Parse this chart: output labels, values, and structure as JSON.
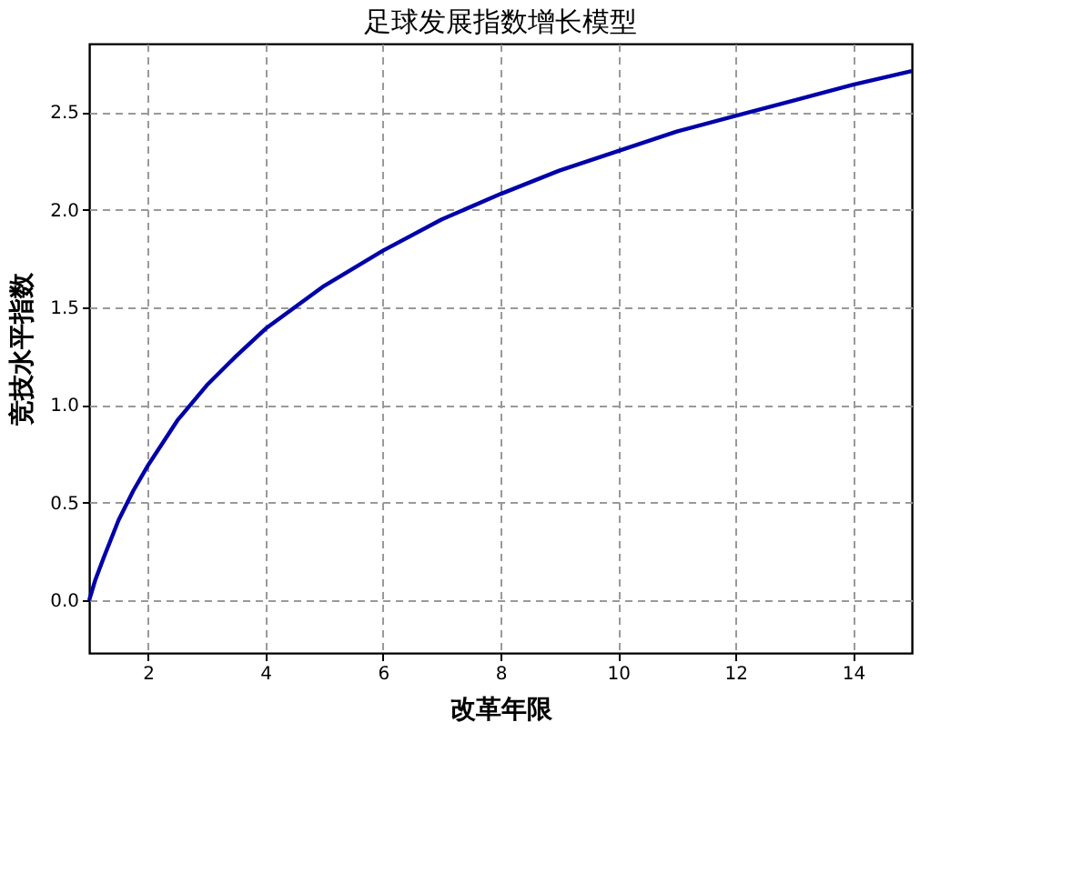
{
  "chart_data": {
    "type": "line",
    "title": "足球发展指数增长模型",
    "xlabel": "改革年限",
    "ylabel": "竞技水平指数",
    "series": [
      {
        "color": "#0000aa",
        "x": [
          1,
          1.1,
          1.25,
          1.5,
          1.75,
          2,
          2.5,
          3,
          3.5,
          4,
          5,
          6,
          7,
          8,
          9,
          10,
          11,
          12,
          13,
          14,
          15
        ],
        "values": [
          0,
          0.1,
          0.22,
          0.41,
          0.56,
          0.69,
          0.92,
          1.1,
          1.25,
          1.39,
          1.61,
          1.79,
          1.95,
          2.08,
          2.2,
          2.3,
          2.4,
          2.48,
          2.56,
          2.64,
          2.71
        ]
      }
    ],
    "xlim": [
      1,
      15
    ],
    "xticks": [
      2,
      4,
      6,
      8,
      10,
      12,
      14
    ],
    "ylim": [
      -0.27,
      2.85
    ],
    "yticks": [
      {
        "value": 0,
        "label": "0.0"
      },
      {
        "value": 0.5,
        "label": "0.5"
      },
      {
        "value": 1,
        "label": "1.0"
      },
      {
        "value": 1.5,
        "label": "1.5"
      },
      {
        "value": 2,
        "label": "2.0"
      },
      {
        "value": 2.5,
        "label": "2.5"
      }
    ],
    "grid": true,
    "line_style": "solid",
    "marker": "none",
    "legend": false
  }
}
